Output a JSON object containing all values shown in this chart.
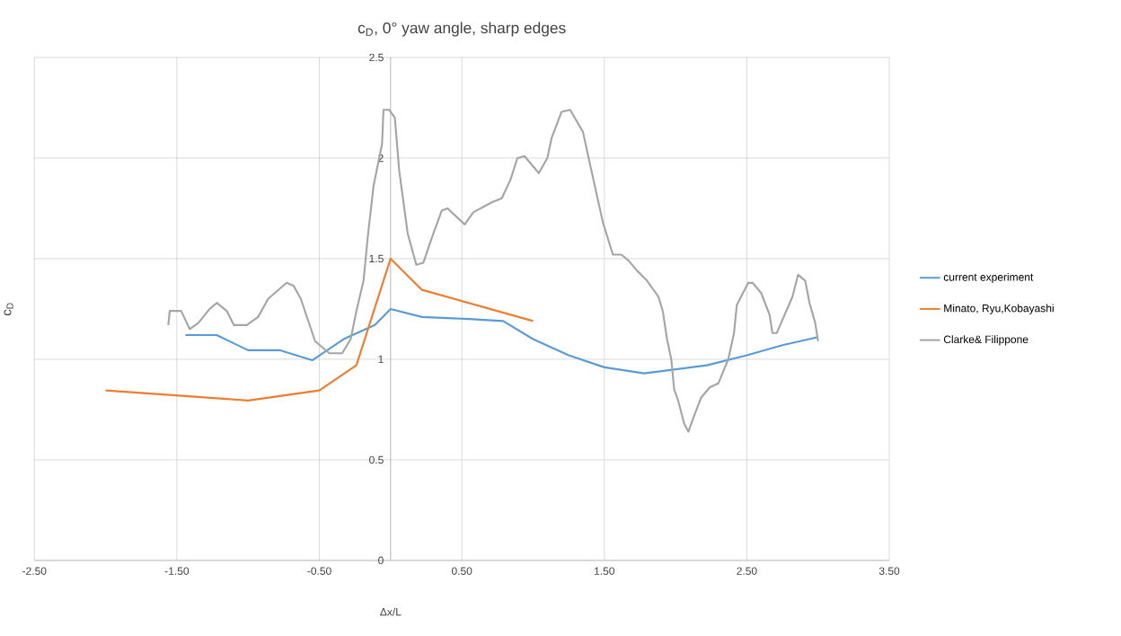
{
  "chart_data": {
    "type": "line",
    "title": "c$_{D}$, 0° yaw angle, sharp edges",
    "xlabel": "Δx/L",
    "ylabel": "c$_{D}$",
    "xlim": [
      -2.5,
      3.5
    ],
    "ylim": [
      0,
      2.5
    ],
    "xticks": [
      {
        "value": -2.5,
        "label": "-2.50"
      },
      {
        "value": -1.5,
        "label": "-1.50"
      },
      {
        "value": -0.5,
        "label": "-0.50"
      },
      {
        "value": 0.5,
        "label": "0.50"
      },
      {
        "value": 1.5,
        "label": "1.50"
      },
      {
        "value": 2.5,
        "label": "2.50"
      },
      {
        "value": 3.5,
        "label": "3.50"
      }
    ],
    "yticks": [
      0,
      0.5,
      1,
      1.5,
      2,
      2.5
    ],
    "grid": true,
    "legend": "right",
    "marker": "none",
    "line_style": "solid",
    "series": [
      {
        "name": "current experiment",
        "color": "#5b9bd5",
        "x": [
          -1.44,
          -1.22,
          -1.0,
          -0.78,
          -0.55,
          -0.33,
          -0.11,
          0.0,
          0.22,
          0.55,
          0.79,
          1.0,
          1.25,
          1.5,
          1.78,
          2.22,
          2.5,
          2.75,
          3.0
        ],
        "values": [
          1.12,
          1.12,
          1.045,
          1.045,
          0.995,
          1.1,
          1.17,
          1.25,
          1.21,
          1.2,
          1.19,
          1.1,
          1.02,
          0.96,
          0.93,
          0.97,
          1.02,
          1.07,
          1.11
        ]
      },
      {
        "name": "Minato, Ryu,Kobayashi",
        "color": "#ed7d31",
        "x": [
          -2.0,
          -1.0,
          -0.5,
          -0.24,
          0.0,
          0.22,
          1.0
        ],
        "values": [
          0.845,
          0.795,
          0.845,
          0.97,
          1.5,
          1.345,
          1.19
        ]
      },
      {
        "name": "Clarke& Filippone",
        "color": "#a5a5a5",
        "x": [
          -1.56,
          -1.55,
          -1.47,
          -1.41,
          -1.35,
          -1.27,
          -1.22,
          -1.15,
          -1.1,
          -1.01,
          -0.93,
          -0.86,
          -0.73,
          -0.68,
          -0.63,
          -0.53,
          -0.43,
          -0.34,
          -0.28,
          -0.24,
          -0.19,
          -0.16,
          -0.12,
          -0.06,
          -0.05,
          -0.01,
          0.03,
          0.06,
          0.12,
          0.18,
          0.23,
          0.3,
          0.36,
          0.4,
          0.52,
          0.58,
          0.71,
          0.78,
          0.84,
          0.89,
          0.94,
          1.04,
          1.1,
          1.13,
          1.2,
          1.26,
          1.35,
          1.39,
          1.49,
          1.56,
          1.62,
          1.67,
          1.73,
          1.8,
          1.88,
          1.91,
          1.94,
          1.97,
          1.99,
          2.02,
          2.06,
          2.09,
          2.12,
          2.18,
          2.24,
          2.3,
          2.37,
          2.41,
          2.43,
          2.51,
          2.54,
          2.6,
          2.66,
          2.68,
          2.71,
          2.74,
          2.82,
          2.86,
          2.91,
          2.94,
          2.98,
          3.0
        ],
        "values": [
          1.17,
          1.24,
          1.24,
          1.15,
          1.18,
          1.25,
          1.28,
          1.24,
          1.17,
          1.17,
          1.21,
          1.3,
          1.38,
          1.365,
          1.3,
          1.09,
          1.03,
          1.03,
          1.1,
          1.24,
          1.39,
          1.61,
          1.86,
          2.07,
          2.24,
          2.24,
          2.2,
          1.94,
          1.625,
          1.47,
          1.48,
          1.625,
          1.74,
          1.75,
          1.67,
          1.73,
          1.78,
          1.8,
          1.89,
          2.0,
          2.01,
          1.925,
          2.0,
          2.1,
          2.23,
          2.24,
          2.13,
          2.0,
          1.68,
          1.52,
          1.52,
          1.49,
          1.44,
          1.39,
          1.31,
          1.24,
          1.1,
          1.0,
          0.85,
          0.79,
          0.68,
          0.64,
          0.7,
          0.81,
          0.86,
          0.88,
          1.0,
          1.13,
          1.27,
          1.38,
          1.38,
          1.33,
          1.22,
          1.13,
          1.13,
          1.18,
          1.31,
          1.42,
          1.39,
          1.28,
          1.18,
          1.09
        ]
      }
    ]
  }
}
